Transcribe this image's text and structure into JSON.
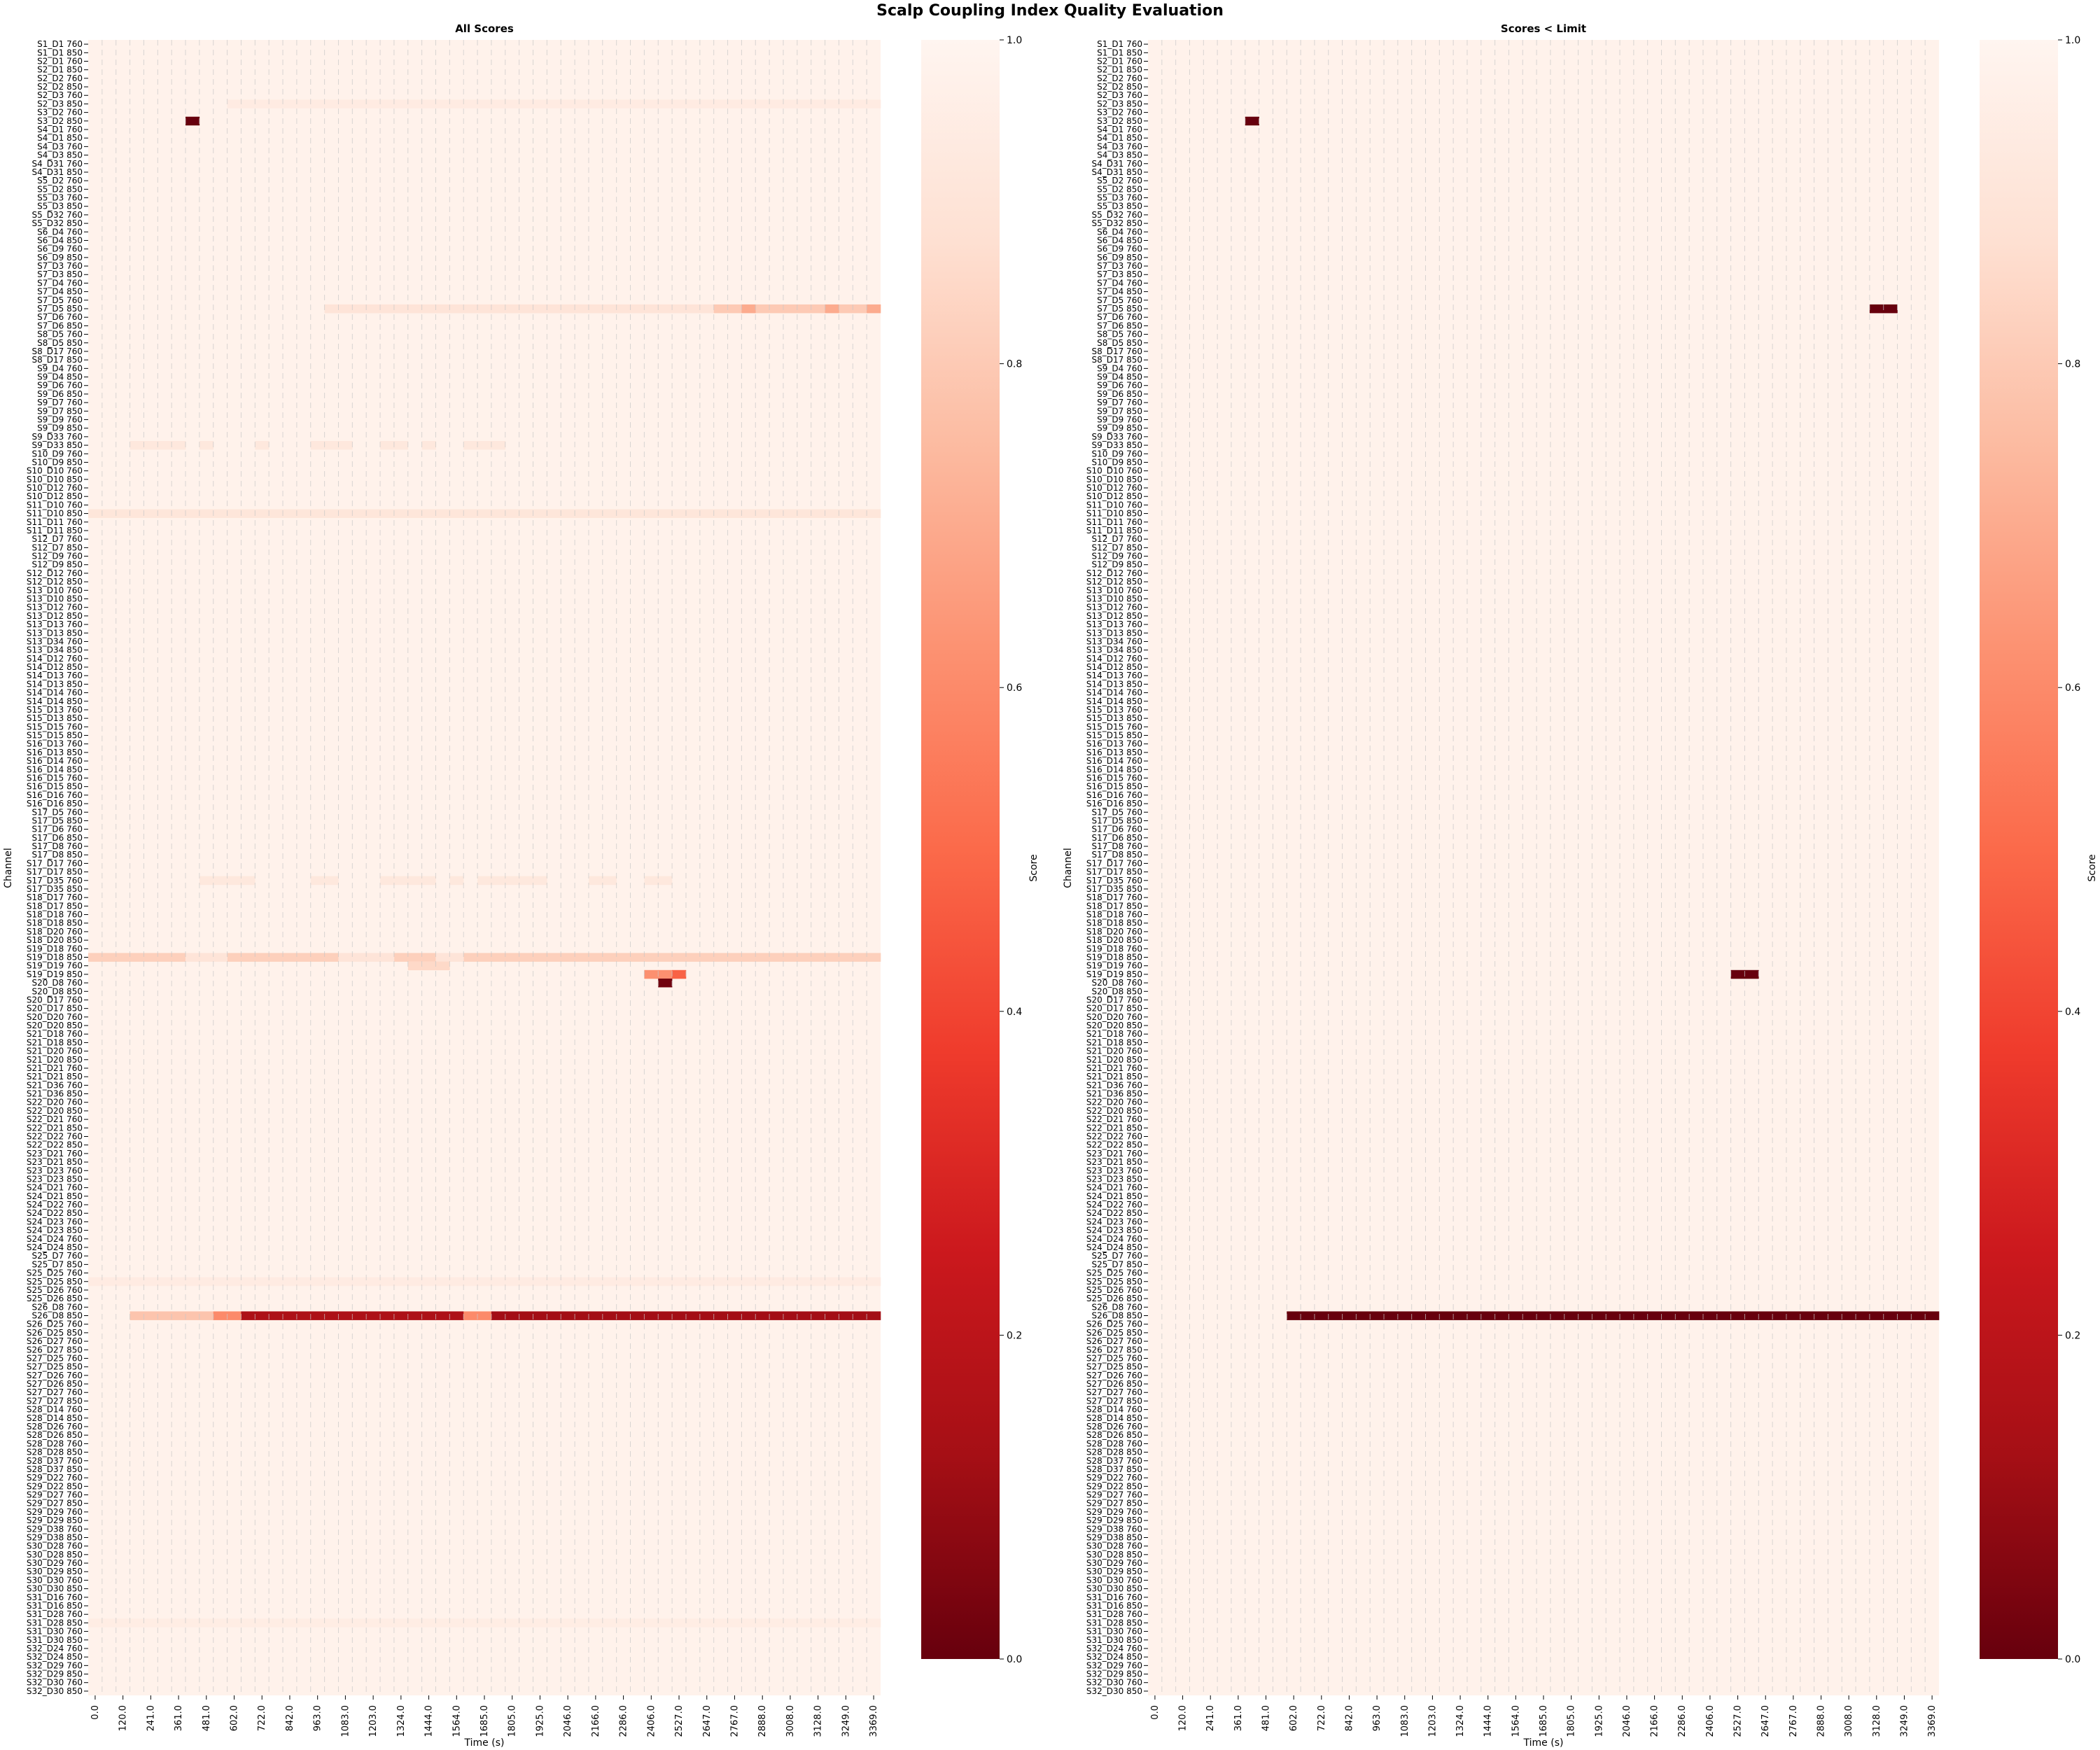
{
  "chart_data": {
    "type": "heatmap",
    "title": "Scalp Coupling Index Quality Evaluation",
    "colormap": "Reds_r",
    "color_low": "#67000d",
    "color_high": "#fff5f0",
    "value_range": [
      0,
      1
    ],
    "colorbar_label": "Score",
    "colorbar_ticks": [
      "0.0",
      "0.2",
      "0.4",
      "0.6",
      "0.8",
      "1.0"
    ],
    "grid": "dashed vertical lines at each time column",
    "xlabel": "Time (s)",
    "ylabel": "Channel",
    "time_ticks": [
      "0.0",
      "120.0",
      "241.0",
      "361.0",
      "481.0",
      "602.0",
      "722.0",
      "842.0",
      "963.0",
      "1083.0",
      "1203.0",
      "1324.0",
      "1444.0",
      "1564.0",
      "1685.0",
      "1805.0",
      "1925.0",
      "2046.0",
      "2166.0",
      "2286.0",
      "2406.0",
      "2527.0",
      "2647.0",
      "2767.0",
      "2888.0",
      "3008.0",
      "3128.0",
      "3249.0",
      "3369.0"
    ],
    "channels": [
      "S1_D1 760",
      "S1_D1 850",
      "S2_D1 760",
      "S2_D1 850",
      "S2_D2 760",
      "S2_D2 850",
      "S2_D3 760",
      "S2_D3 850",
      "S3_D2 760",
      "S3_D2 850",
      "S4_D1 760",
      "S4_D1 850",
      "S4_D3 760",
      "S4_D3 850",
      "S4_D31 760",
      "S4_D31 850",
      "S5_D2 760",
      "S5_D2 850",
      "S5_D3 760",
      "S5_D3 850",
      "S5_D32 760",
      "S5_D32 850",
      "S6_D4 760",
      "S6_D4 850",
      "S6_D9 760",
      "S6_D9 850",
      "S7_D3 760",
      "S7_D3 850",
      "S7_D4 760",
      "S7_D4 850",
      "S7_D5 760",
      "S7_D5 850",
      "S7_D6 760",
      "S7_D6 850",
      "S8_D5 760",
      "S8_D5 850",
      "S8_D17 760",
      "S8_D17 850",
      "S9_D4 760",
      "S9_D4 850",
      "S9_D6 760",
      "S9_D6 850",
      "S9_D7 760",
      "S9_D7 850",
      "S9_D9 760",
      "S9_D9 850",
      "S9_D33 760",
      "S9_D33 850",
      "S10_D9 760",
      "S10_D9 850",
      "S10_D10 760",
      "S10_D10 850",
      "S10_D12 760",
      "S10_D12 850",
      "S11_D10 760",
      "S11_D10 850",
      "S11_D11 760",
      "S11_D11 850",
      "S12_D7 760",
      "S12_D7 850",
      "S12_D9 760",
      "S12_D9 850",
      "S12_D12 760",
      "S12_D12 850",
      "S13_D10 760",
      "S13_D10 850",
      "S13_D12 760",
      "S13_D12 850",
      "S13_D13 760",
      "S13_D13 850",
      "S13_D34 760",
      "S13_D34 850",
      "S14_D12 760",
      "S14_D12 850",
      "S14_D13 760",
      "S14_D13 850",
      "S14_D14 760",
      "S14_D14 850",
      "S15_D13 760",
      "S15_D13 850",
      "S15_D15 760",
      "S15_D15 850",
      "S16_D13 760",
      "S16_D13 850",
      "S16_D14 760",
      "S16_D14 850",
      "S16_D15 760",
      "S16_D15 850",
      "S16_D16 760",
      "S16_D16 850",
      "S17_D5 760",
      "S17_D5 850",
      "S17_D6 760",
      "S17_D6 850",
      "S17_D8 760",
      "S17_D8 850",
      "S17_D17 760",
      "S17_D17 850",
      "S17_D35 760",
      "S17_D35 850",
      "S18_D17 760",
      "S18_D17 850",
      "S18_D18 760",
      "S18_D18 850",
      "S18_D20 760",
      "S18_D20 850",
      "S19_D18 760",
      "S19_D18 850",
      "S19_D19 760",
      "S19_D19 850",
      "S20_D8 760",
      "S20_D8 850",
      "S20_D17 760",
      "S20_D17 850",
      "S20_D20 760",
      "S20_D20 850",
      "S21_D18 760",
      "S21_D18 850",
      "S21_D20 760",
      "S21_D20 850",
      "S21_D21 760",
      "S21_D21 850",
      "S21_D36 760",
      "S21_D36 850",
      "S22_D20 760",
      "S22_D20 850",
      "S22_D21 760",
      "S22_D21 850",
      "S22_D22 760",
      "S22_D22 850",
      "S23_D21 760",
      "S23_D21 850",
      "S23_D23 760",
      "S23_D23 850",
      "S24_D21 760",
      "S24_D21 850",
      "S24_D22 760",
      "S24_D22 850",
      "S24_D23 760",
      "S24_D23 850",
      "S24_D24 760",
      "S24_D24 850",
      "S25_D7 760",
      "S25_D7 850",
      "S25_D25 760",
      "S25_D25 850",
      "S25_D26 760",
      "S25_D26 850",
      "S26_D8 760",
      "S26_D8 850",
      "S26_D25 760",
      "S26_D25 850",
      "S26_D27 760",
      "S26_D27 850",
      "S27_D25 760",
      "S27_D25 850",
      "S27_D26 760",
      "S27_D26 850",
      "S27_D27 760",
      "S27_D27 850",
      "S28_D14 760",
      "S28_D14 850",
      "S28_D26 760",
      "S28_D26 850",
      "S28_D28 760",
      "S28_D28 850",
      "S28_D37 760",
      "S28_D37 850",
      "S29_D22 760",
      "S29_D22 850",
      "S29_D27 760",
      "S29_D27 850",
      "S29_D29 760",
      "S29_D29 850",
      "S29_D38 760",
      "S29_D38 850",
      "S30_D28 760",
      "S30_D28 850",
      "S30_D29 760",
      "S30_D29 850",
      "S30_D30 760",
      "S30_D30 850",
      "S31_D16 760",
      "S31_D16 850",
      "S31_D28 760",
      "S31_D28 850",
      "S31_D30 760",
      "S31_D30 850",
      "S32_D24 760",
      "S32_D24 850",
      "S32_D29 760",
      "S32_D29 850",
      "S32_D30 760",
      "S32_D30 850"
    ],
    "n_windows": 57,
    "default_score": 0.98,
    "panels": [
      {
        "title": "All Scores",
        "cells": [
          {
            "channel": "S3_D2 850",
            "windows": [
              7
            ],
            "value": 0.0
          },
          {
            "channel": "S2_D3 850",
            "windows": [
              10,
              11,
              12,
              13,
              14,
              15,
              16,
              17,
              18,
              19,
              20,
              21,
              22,
              23,
              24,
              25,
              26,
              27,
              28,
              29,
              30,
              31,
              32,
              33,
              34,
              35,
              36,
              37,
              38,
              39,
              40,
              41,
              42,
              43,
              44,
              45,
              46,
              47,
              48,
              49,
              50,
              51,
              52,
              53,
              54,
              55,
              56
            ],
            "value": 0.94
          },
          {
            "channel": "S7_D5 850",
            "windows": [
              17,
              18,
              19,
              20,
              21,
              22,
              23,
              24,
              25,
              26,
              27,
              28,
              29,
              30,
              31,
              32,
              33,
              34,
              35,
              36,
              37,
              38,
              39,
              40,
              41,
              42,
              43,
              44
            ],
            "value": 0.9
          },
          {
            "channel": "S7_D5 850",
            "windows": [
              45,
              46,
              48,
              49,
              50,
              51,
              52,
              54,
              55
            ],
            "value": 0.8
          },
          {
            "channel": "S7_D5 850",
            "windows": [
              47,
              53,
              56
            ],
            "value": 0.7
          },
          {
            "channel": "S11_D10 850",
            "windows": [
              0,
              1,
              2,
              3,
              4,
              5,
              6,
              7,
              8,
              9,
              10,
              11,
              12,
              13,
              14,
              15,
              16,
              17,
              18,
              19,
              20,
              21,
              22,
              23,
              24,
              25,
              26,
              27,
              28,
              29,
              30,
              31,
              32,
              33,
              34,
              35,
              36,
              37,
              38,
              39,
              40,
              41,
              42,
              43,
              44,
              45,
              46,
              47,
              48,
              49,
              50,
              51,
              52,
              53,
              54,
              55,
              56
            ],
            "value": 0.91
          },
          {
            "channel": "S9_D33 850",
            "windows": [
              3,
              4,
              5,
              6,
              8,
              12,
              16,
              17,
              18,
              21,
              22,
              24,
              27,
              28,
              29
            ],
            "value": 0.92
          },
          {
            "channel": "S17_D35 760",
            "windows": [
              8,
              9,
              10,
              11,
              16,
              17,
              21,
              22,
              23,
              24,
              26,
              28,
              29,
              30,
              31,
              32,
              36,
              37,
              40,
              41
            ],
            "value": 0.92
          },
          {
            "channel": "S19_D18 850",
            "windows": [
              0,
              1,
              2,
              3,
              4,
              5,
              6,
              10,
              11,
              12,
              13,
              14,
              15,
              16,
              17,
              22,
              23,
              24,
              27,
              28,
              29,
              30,
              31,
              32,
              33,
              34,
              35,
              36,
              37,
              38,
              39,
              40,
              41,
              42,
              43,
              44,
              45,
              46,
              47,
              48,
              49,
              50,
              51,
              52,
              53,
              54,
              55,
              56
            ],
            "value": 0.82
          },
          {
            "channel": "S19_D18 850",
            "windows": [
              7,
              8,
              9,
              18,
              19,
              20,
              21,
              25,
              26
            ],
            "value": 0.9
          },
          {
            "channel": "S19_D19 760",
            "windows": [
              23,
              24,
              25
            ],
            "value": 0.85
          },
          {
            "channel": "S19_D19 850",
            "windows": [
              40,
              41
            ],
            "value": 0.62
          },
          {
            "channel": "S19_D19 850",
            "windows": [
              42
            ],
            "value": 0.48
          },
          {
            "channel": "S20_D8 760",
            "windows": [
              41
            ],
            "value": 0.02
          },
          {
            "channel": "S26_D8 850",
            "windows": [
              3,
              4,
              5,
              6,
              7,
              8
            ],
            "value": 0.78
          },
          {
            "channel": "S26_D8 850",
            "windows": [
              9,
              10
            ],
            "value": 0.6
          },
          {
            "channel": "S26_D8 850",
            "windows": [
              11,
              12,
              13,
              14,
              15,
              16,
              17,
              18,
              19,
              20,
              21,
              22,
              23,
              24,
              25,
              26
            ],
            "value": 0.15
          },
          {
            "channel": "S26_D8 850",
            "windows": [
              27,
              28
            ],
            "value": 0.6
          },
          {
            "channel": "S26_D8 850",
            "windows": [
              29,
              30,
              31,
              32,
              33,
              34,
              35,
              36,
              37,
              38,
              39,
              40,
              41,
              42,
              43,
              44,
              45,
              46,
              47,
              48,
              49,
              50,
              51,
              52,
              53,
              54,
              55,
              56
            ],
            "value": 0.12
          },
          {
            "channel": "S25_D25 850",
            "windows": [
              0,
              1,
              2,
              3,
              4,
              5,
              6,
              7,
              8,
              9,
              10,
              11,
              12,
              13,
              14,
              15,
              16,
              17,
              18,
              19,
              20,
              21,
              22,
              23,
              24,
              25,
              26,
              27,
              28,
              29,
              30,
              31,
              32,
              33,
              34,
              35,
              36,
              37,
              38,
              39,
              40,
              41,
              42,
              43,
              44,
              45,
              46,
              47,
              48,
              49,
              50,
              51,
              52,
              53,
              54,
              55,
              56
            ],
            "value": 0.94
          },
          {
            "channel": "S31_D28 850",
            "windows": [
              0,
              1,
              2,
              3,
              4,
              5,
              6,
              7,
              8,
              9,
              10,
              11,
              12,
              13,
              14,
              15,
              16,
              17,
              18,
              19,
              20,
              21,
              22,
              23,
              24,
              25,
              26,
              27,
              28,
              29,
              30,
              31,
              32,
              33,
              34,
              35,
              36,
              37,
              38,
              39,
              40,
              41,
              42,
              43,
              44,
              45,
              46,
              47,
              48,
              49,
              50,
              51,
              52,
              53,
              54,
              55,
              56
            ],
            "value": 0.95
          }
        ]
      },
      {
        "title": "Scores < Limit",
        "cells": [
          {
            "channel": "S3_D2 850",
            "windows": [
              7
            ],
            "value": 0.0
          },
          {
            "channel": "S7_D5 850",
            "windows": [
              52,
              53
            ],
            "value": 0.0
          },
          {
            "channel": "S19_D19 850",
            "windows": [
              42,
              43
            ],
            "value": 0.0
          },
          {
            "channel": "S26_D8 850",
            "windows": [
              10,
              11,
              12,
              13,
              14,
              15,
              16,
              17,
              18,
              19,
              20,
              21,
              22,
              23,
              24,
              25,
              26,
              27,
              28
            ],
            "value": 0.0
          },
          {
            "channel": "S26_D8 850",
            "windows": [
              29,
              30,
              31,
              32,
              33,
              34,
              35,
              36,
              37,
              38,
              39,
              40,
              41,
              42,
              43,
              44,
              45,
              46,
              47,
              48,
              49,
              50,
              51,
              52,
              53,
              54,
              55,
              56
            ],
            "value": 0.0
          }
        ]
      }
    ]
  }
}
